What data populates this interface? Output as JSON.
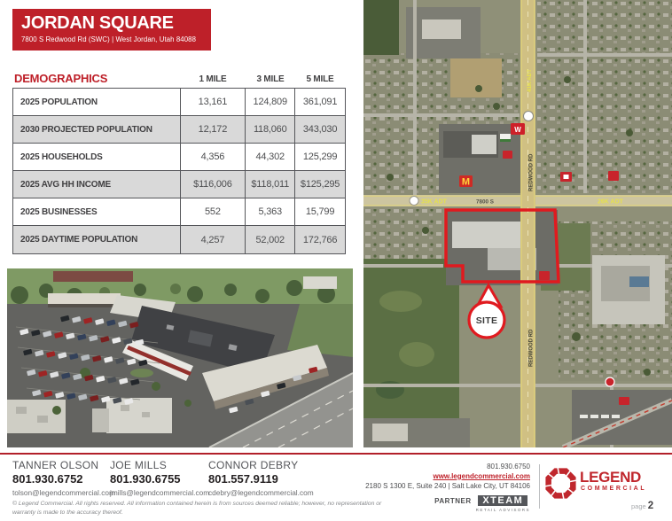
{
  "header": {
    "title": "JORDAN SQUARE",
    "address": "7800 S Redwood Rd (SWC)  |  West Jordan, Utah 84088"
  },
  "demographics": {
    "heading": "DEMOGRAPHICS",
    "columns": [
      "1 MILE",
      "3 MILE",
      "5 MILE"
    ],
    "rows": [
      {
        "label": "2025 POPULATION",
        "values": [
          "13,161",
          "124,809",
          "361,091"
        ]
      },
      {
        "label": "2030 PROJECTED POPULATION",
        "values": [
          "12,172",
          "118,060",
          "343,030"
        ]
      },
      {
        "label": "2025 HOUSEHOLDS",
        "values": [
          "4,356",
          "44,302",
          "125,299"
        ]
      },
      {
        "label": "2025 AVG HH INCOME",
        "values": [
          "$116,006",
          "$118,011",
          "$125,295"
        ]
      },
      {
        "label": "2025 BUSINESSES",
        "values": [
          "552",
          "5,363",
          "15,799"
        ]
      },
      {
        "label": "2025 DAYTIME POPULATION",
        "values": [
          "4,257",
          "52,002",
          "172,766"
        ]
      }
    ]
  },
  "map": {
    "site_label": "SITE",
    "road_7800s": "7800 S",
    "adt_west": "35K ADT",
    "adt_east": "26K ADT",
    "adt_north": "41K ADT",
    "redwood_label": "REDWOOD RD",
    "mcdonalds_letter": "M",
    "wendys_letter": "W"
  },
  "footer": {
    "contacts": [
      {
        "name": "TANNER OLSON",
        "phone": "801.930.6752",
        "email": "tolson@legendcommercial.com"
      },
      {
        "name": "JOE MILLS",
        "phone": "801.930.6755",
        "email": "jmills@legendcommercial.com"
      },
      {
        "name": "CONNOR DEBRY",
        "phone": "801.557.9119",
        "email": "cdebry@legendcommercial.com"
      }
    ],
    "disclaimer": "© Legend Commercial. All rights reserved. All information contained herein is from sources deemed reliable;  however, no representation or warranty is made to the accuracy thereof.",
    "company": {
      "phone": "801.930.6750",
      "website": "www.legendcommercial.com",
      "address": "2180 S 1300 E, Suite 240 | Salt Lake City, UT 84106",
      "partner_label": "PARTNER",
      "partner_name": "XTEAM",
      "partner_sub": "RETAIL ADVISORS",
      "logo_line1": "LEGEND",
      "logo_line2": "COMMERCIAL"
    },
    "page_label": "page",
    "page_number": "2"
  }
}
